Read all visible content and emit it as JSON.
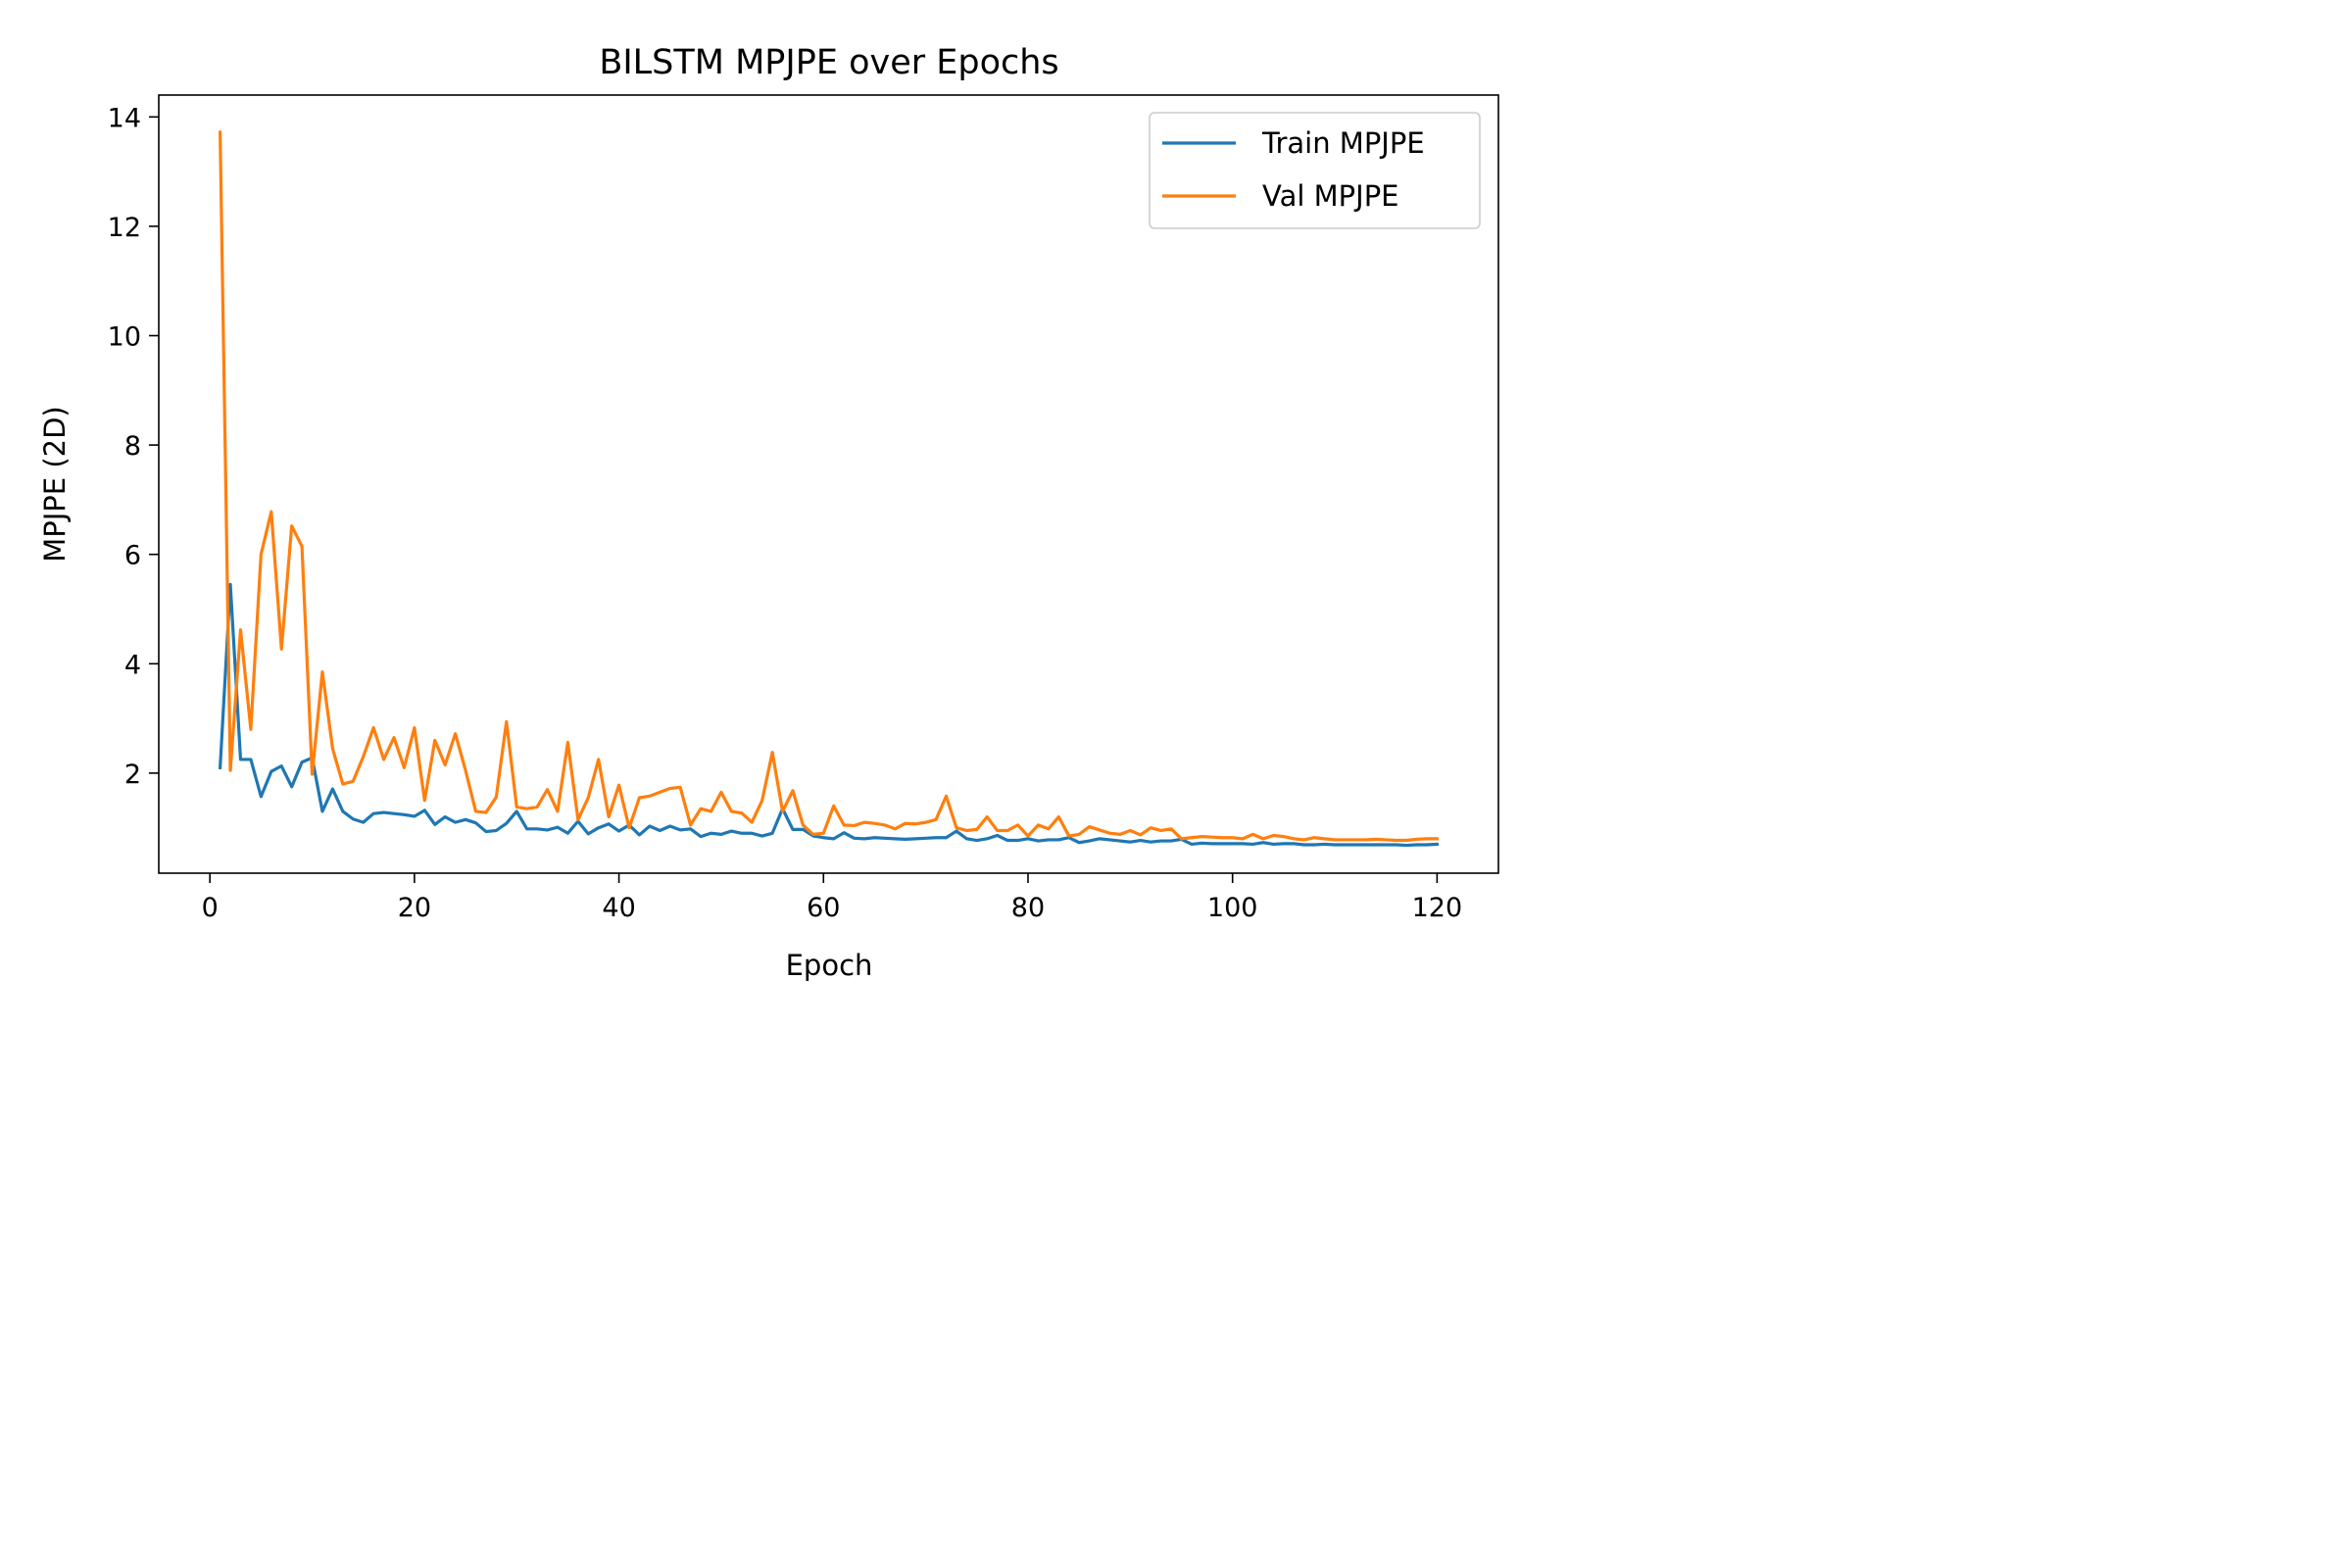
{
  "chart_data": {
    "type": "line",
    "title": "BILSTM MPJPE over Epochs",
    "xlabel": "Epoch",
    "ylabel": "MPJPE (2D)",
    "xlim": [
      -5,
      126
    ],
    "ylim": [
      0.17,
      14.4
    ],
    "xticks": [
      0,
      20,
      40,
      60,
      80,
      100,
      120
    ],
    "yticks": [
      2,
      4,
      6,
      8,
      10,
      12,
      14
    ],
    "grid": false,
    "legend_position": "top-right",
    "x": [
      1,
      2,
      3,
      4,
      5,
      6,
      7,
      8,
      9,
      10,
      11,
      12,
      13,
      14,
      15,
      16,
      17,
      18,
      19,
      20,
      21,
      22,
      23,
      24,
      25,
      26,
      27,
      28,
      29,
      30,
      31,
      32,
      33,
      34,
      35,
      36,
      37,
      38,
      39,
      40,
      41,
      42,
      43,
      44,
      45,
      46,
      47,
      48,
      49,
      50,
      51,
      52,
      53,
      54,
      55,
      56,
      57,
      58,
      59,
      60,
      61,
      62,
      63,
      64,
      65,
      66,
      67,
      68,
      69,
      70,
      71,
      72,
      73,
      74,
      75,
      76,
      77,
      78,
      79,
      80,
      81,
      82,
      83,
      84,
      85,
      86,
      87,
      88,
      89,
      90,
      91,
      92,
      93,
      94,
      95,
      96,
      97,
      98,
      99,
      100,
      101,
      102,
      103,
      104,
      105,
      106,
      107,
      108,
      109,
      110,
      111,
      112,
      113,
      114,
      115,
      116,
      117,
      118,
      119,
      120
    ],
    "series": [
      {
        "name": "Train MPJPE",
        "color": "#1f77b4",
        "values": [
          2.1,
          5.45,
          2.25,
          2.25,
          1.57,
          2.03,
          2.13,
          1.75,
          2.2,
          2.28,
          1.3,
          1.71,
          1.3,
          1.16,
          1.1,
          1.26,
          1.28,
          1.26,
          1.24,
          1.21,
          1.32,
          1.06,
          1.2,
          1.1,
          1.15,
          1.09,
          0.93,
          0.95,
          1.08,
          1.3,
          0.98,
          0.98,
          0.96,
          1.01,
          0.9,
          1.12,
          0.89,
          1.0,
          1.07,
          0.94,
          1.05,
          0.87,
          1.03,
          0.95,
          1.03,
          0.96,
          0.98,
          0.84,
          0.9,
          0.88,
          0.94,
          0.9,
          0.9,
          0.85,
          0.9,
          1.35,
          0.97,
          0.97,
          0.85,
          0.82,
          0.8,
          0.91,
          0.81,
          0.8,
          0.82,
          0.81,
          0.8,
          0.79,
          0.8,
          0.81,
          0.82,
          0.82,
          0.94,
          0.8,
          0.77,
          0.8,
          0.86,
          0.77,
          0.77,
          0.8,
          0.76,
          0.78,
          0.78,
          0.82,
          0.73,
          0.76,
          0.8,
          0.78,
          0.76,
          0.74,
          0.77,
          0.74,
          0.76,
          0.76,
          0.79,
          0.7,
          0.72,
          0.71,
          0.71,
          0.71,
          0.71,
          0.7,
          0.73,
          0.7,
          0.71,
          0.71,
          0.69,
          0.69,
          0.7,
          0.69,
          0.69,
          0.69,
          0.69,
          0.69,
          0.69,
          0.69,
          0.68,
          0.69,
          0.69,
          0.7
        ]
      },
      {
        "name": "Val MPJPE",
        "color": "#ff7f0e",
        "values": [
          13.72,
          2.05,
          4.62,
          2.8,
          6.0,
          6.78,
          4.27,
          6.52,
          6.15,
          1.98,
          3.85,
          2.45,
          1.8,
          1.85,
          2.3,
          2.83,
          2.25,
          2.65,
          2.1,
          2.83,
          1.5,
          2.6,
          2.15,
          2.72,
          2.05,
          1.3,
          1.28,
          1.56,
          2.94,
          1.38,
          1.35,
          1.38,
          1.7,
          1.3,
          2.56,
          1.15,
          1.55,
          2.25,
          1.2,
          1.78,
          1.0,
          1.55,
          1.58,
          1.65,
          1.72,
          1.74,
          1.05,
          1.35,
          1.3,
          1.65,
          1.3,
          1.27,
          1.1,
          1.5,
          2.38,
          1.3,
          1.68,
          1.05,
          0.88,
          0.9,
          1.4,
          1.05,
          1.04,
          1.1,
          1.08,
          1.05,
          0.98,
          1.08,
          1.07,
          1.1,
          1.15,
          1.58,
          1.0,
          0.95,
          0.97,
          1.2,
          0.95,
          0.95,
          1.05,
          0.85,
          1.05,
          0.98,
          1.2,
          0.85,
          0.88,
          1.02,
          0.96,
          0.9,
          0.88,
          0.95,
          0.87,
          1.0,
          0.95,
          0.98,
          0.8,
          0.82,
          0.84,
          0.83,
          0.82,
          0.82,
          0.8,
          0.88,
          0.8,
          0.86,
          0.84,
          0.8,
          0.78,
          0.82,
          0.8,
          0.78,
          0.78,
          0.78,
          0.78,
          0.79,
          0.78,
          0.77,
          0.77,
          0.79,
          0.8,
          0.8
        ]
      }
    ]
  }
}
